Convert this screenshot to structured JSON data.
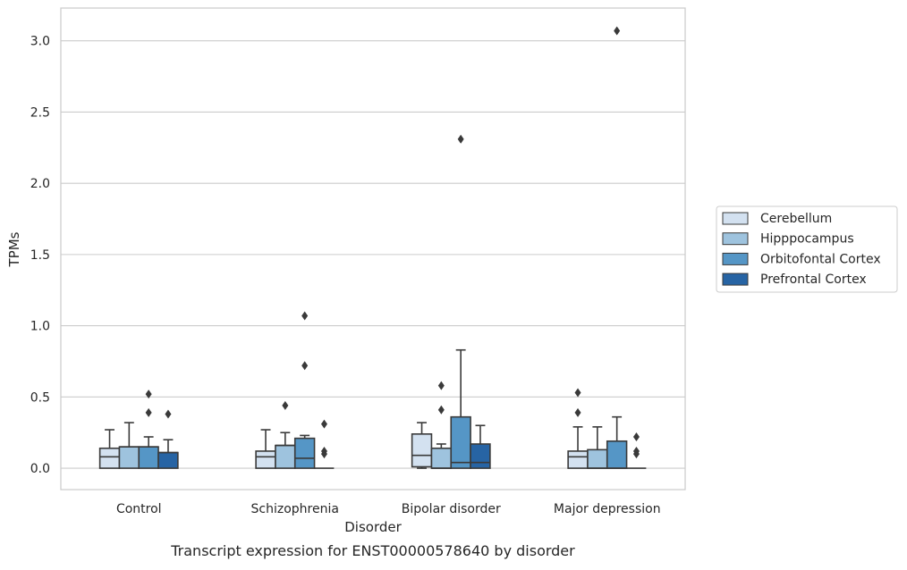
{
  "chart_data": {
    "type": "box",
    "title": "",
    "xlabel": "Disorder",
    "ylabel": "TPMs",
    "caption": "Transcript expression for ENST00000578640 by disorder",
    "ylim": [
      -0.15,
      3.23
    ],
    "yticks": [
      0.0,
      0.5,
      1.0,
      1.5,
      2.0,
      2.5,
      3.0
    ],
    "ytick_labels": [
      "0.0",
      "0.5",
      "1.0",
      "1.5",
      "2.0",
      "2.5",
      "3.0"
    ],
    "grid": "horizontal",
    "legend_position": "right",
    "categories": [
      "Control",
      "Schizophrenia",
      "Bipolar disorder",
      "Major depression"
    ],
    "series": [
      {
        "name": "Cerebellum",
        "color": "#d3e1f0",
        "boxes": [
          {
            "whislo": 0.0,
            "q1": 0.0,
            "med": 0.08,
            "q3": 0.14,
            "whishi": 0.27,
            "fliers": []
          },
          {
            "whislo": 0.0,
            "q1": 0.0,
            "med": 0.08,
            "q3": 0.12,
            "whishi": 0.27,
            "fliers": []
          },
          {
            "whislo": 0.0,
            "q1": 0.01,
            "med": 0.09,
            "q3": 0.24,
            "whishi": 0.32,
            "fliers": []
          },
          {
            "whislo": 0.0,
            "q1": 0.0,
            "med": 0.08,
            "q3": 0.12,
            "whishi": 0.29,
            "fliers": [
              0.39,
              0.53
            ]
          }
        ]
      },
      {
        "name": "Hipppocampus",
        "color": "#9ec3de",
        "boxes": [
          {
            "whislo": 0.0,
            "q1": 0.0,
            "med": 0.15,
            "q3": 0.15,
            "whishi": 0.32,
            "fliers": []
          },
          {
            "whislo": 0.0,
            "q1": 0.0,
            "med": 0.16,
            "q3": 0.16,
            "whishi": 0.25,
            "fliers": [
              0.44
            ]
          },
          {
            "whislo": 0.0,
            "q1": 0.0,
            "med": 0.0,
            "q3": 0.14,
            "whishi": 0.17,
            "fliers": [
              0.41,
              0.58
            ]
          },
          {
            "whislo": 0.0,
            "q1": 0.0,
            "med": 0.0,
            "q3": 0.13,
            "whishi": 0.29,
            "fliers": []
          }
        ]
      },
      {
        "name": "Orbitofontal Cortex",
        "color": "#5596c6",
        "boxes": [
          {
            "whislo": 0.0,
            "q1": 0.0,
            "med": 0.15,
            "q3": 0.15,
            "whishi": 0.22,
            "fliers": [
              0.39,
              0.52
            ]
          },
          {
            "whislo": 0.0,
            "q1": 0.0,
            "med": 0.07,
            "q3": 0.21,
            "whishi": 0.23,
            "fliers": [
              0.72,
              1.07
            ]
          },
          {
            "whislo": 0.0,
            "q1": 0.0,
            "med": 0.04,
            "q3": 0.36,
            "whishi": 0.83,
            "fliers": [
              2.31
            ]
          },
          {
            "whislo": 0.0,
            "q1": 0.0,
            "med": 0.0,
            "q3": 0.19,
            "whishi": 0.36,
            "fliers": [
              3.07
            ]
          }
        ]
      },
      {
        "name": "Prefrontal Cortex",
        "color": "#2764a4",
        "boxes": [
          {
            "whislo": 0.0,
            "q1": 0.0,
            "med": 0.11,
            "q3": 0.11,
            "whishi": 0.2,
            "fliers": [
              0.38
            ]
          },
          {
            "whislo": 0.0,
            "q1": 0.0,
            "med": 0.0,
            "q3": 0.0,
            "whishi": 0.0,
            "fliers": [
              0.1,
              0.12,
              0.31
            ]
          },
          {
            "whislo": 0.0,
            "q1": 0.0,
            "med": 0.04,
            "q3": 0.17,
            "whishi": 0.3,
            "fliers": []
          },
          {
            "whislo": 0.0,
            "q1": 0.0,
            "med": 0.0,
            "q3": 0.0,
            "whishi": 0.0,
            "fliers": [
              0.1,
              0.12,
              0.22
            ]
          }
        ]
      }
    ]
  }
}
